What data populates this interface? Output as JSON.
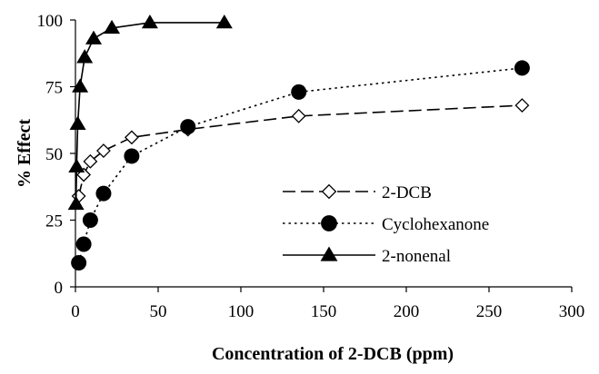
{
  "chart_data": {
    "type": "line",
    "xlabel": "Concentration of 2-DCB (ppm)",
    "ylabel": "% Effect",
    "xlim": [
      0,
      300
    ],
    "ylim": [
      0,
      100
    ],
    "x_ticks": [
      "0",
      "50",
      "100",
      "150",
      "200",
      "250",
      "300"
    ],
    "y_ticks": [
      "0",
      "25",
      "50",
      "75",
      "100"
    ],
    "grid": false,
    "legend_position": "bottom-right",
    "series": [
      {
        "name": "2-DCB",
        "line": "dashed",
        "marker": "open-diamond",
        "color": "#000000",
        "x": [
          2,
          5,
          9,
          17,
          34,
          68,
          135,
          270
        ],
        "y": [
          34,
          42,
          47,
          51,
          56,
          59,
          64,
          68
        ]
      },
      {
        "name": "Cyclohexanone",
        "line": "dotted",
        "marker": "filled-circle",
        "color": "#000000",
        "x": [
          2,
          5,
          9,
          17,
          34,
          68,
          135,
          270
        ],
        "y": [
          9,
          16,
          25,
          35,
          49,
          60,
          73,
          82
        ]
      },
      {
        "name": "2-nonenal",
        "line": "solid",
        "marker": "filled-triangle",
        "color": "#000000",
        "x": [
          0.35,
          0.7,
          1.4,
          2.8,
          5.6,
          11,
          22,
          45,
          90
        ],
        "y": [
          31,
          45,
          61,
          75,
          86,
          93,
          97,
          99,
          99
        ]
      }
    ]
  }
}
